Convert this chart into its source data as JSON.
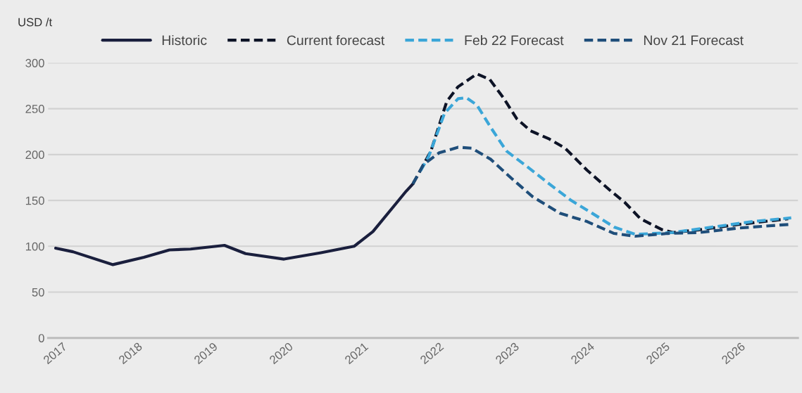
{
  "chart_data": {
    "type": "line",
    "ylabel": "USD /t",
    "xlim": [
      2016.9,
      2026.85
    ],
    "xticks": [
      2017,
      2018,
      2019,
      2020,
      2021,
      2022,
      2023,
      2024,
      2025,
      2026
    ],
    "ylim": [
      0,
      300
    ],
    "yticks": [
      0,
      50,
      100,
      150,
      200,
      250,
      300
    ],
    "grid": "y",
    "legend": "top",
    "series": [
      {
        "name": "Historic",
        "color": "#1a1f3d",
        "line_style": "solid",
        "x": [
          2017.0,
          2017.23,
          2017.76,
          2018.17,
          2018.51,
          2018.79,
          2019.24,
          2019.52,
          2020.03,
          2020.52,
          2020.96,
          2021.21,
          2021.52,
          2021.65,
          2021.74
        ],
        "values": [
          98,
          94,
          80,
          88,
          96,
          97,
          101,
          92,
          86,
          93,
          100,
          116,
          147,
          160,
          168
        ]
      },
      {
        "name": "Current forecast",
        "color": "#0d1326",
        "line_style": "dashed",
        "x": [
          2021.74,
          2021.98,
          2022.19,
          2022.34,
          2022.59,
          2022.76,
          2022.94,
          2023.12,
          2023.3,
          2023.55,
          2023.76,
          2024.05,
          2024.37,
          2024.55,
          2024.76,
          2025.05,
          2025.19,
          2025.54,
          2026.08,
          2026.72
        ],
        "values": [
          168,
          204,
          258,
          274,
          288,
          282,
          262,
          239,
          226,
          217,
          207,
          183,
          160,
          148,
          130,
          118,
          115,
          118,
          124,
          130
        ]
      },
      {
        "name": "Feb 22 Forecast",
        "color": "#3ba6d8",
        "line_style": "dashed",
        "x": [
          2021.84,
          2021.95,
          2022.16,
          2022.34,
          2022.45,
          2022.59,
          2022.77,
          2022.98,
          2023.27,
          2023.55,
          2023.84,
          2024.12,
          2024.41,
          2024.69,
          2025.19,
          2025.72,
          2026.25,
          2026.76
        ],
        "values": [
          182,
          198,
          245,
          261,
          262,
          254,
          230,
          204,
          186,
          168,
          150,
          136,
          121,
          113,
          115,
          121,
          127,
          131
        ]
      },
      {
        "name": "Nov 21 Forecast",
        "color": "#1f4e7a",
        "line_style": "dashed",
        "x": [
          2021.74,
          2021.88,
          2022.09,
          2022.34,
          2022.52,
          2022.77,
          2023.05,
          2023.33,
          2023.69,
          2024.05,
          2024.41,
          2024.69,
          2025.12,
          2025.54,
          2026.08,
          2026.76
        ],
        "values": [
          168,
          189,
          202,
          208,
          207,
          195,
          174,
          154,
          136,
          127,
          114,
          111,
          114,
          115,
          120,
          124
        ]
      }
    ]
  }
}
